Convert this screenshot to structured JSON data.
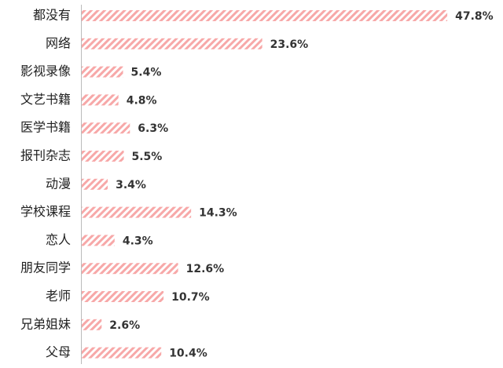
{
  "chart_data": {
    "type": "bar",
    "orientation": "horizontal",
    "categories": [
      "都没有",
      "网络",
      "影视录像",
      "文艺书籍",
      "医学书籍",
      "报刊杂志",
      "动漫",
      "学校课程",
      "恋人",
      "朋友同学",
      "老师",
      "兄弟姐妹",
      "父母"
    ],
    "values": [
      47.8,
      23.6,
      5.4,
      4.8,
      6.3,
      5.5,
      3.4,
      14.3,
      4.3,
      12.6,
      10.7,
      2.6,
      10.4
    ],
    "value_labels": [
      "47.8%",
      "23.6%",
      "5.4%",
      "4.8%",
      "6.3%",
      "5.5%",
      "3.4%",
      "14.3%",
      "4.3%",
      "12.6%",
      "10.7%",
      "2.6%",
      "10.4%"
    ],
    "color": "#f7a8a8"
  }
}
